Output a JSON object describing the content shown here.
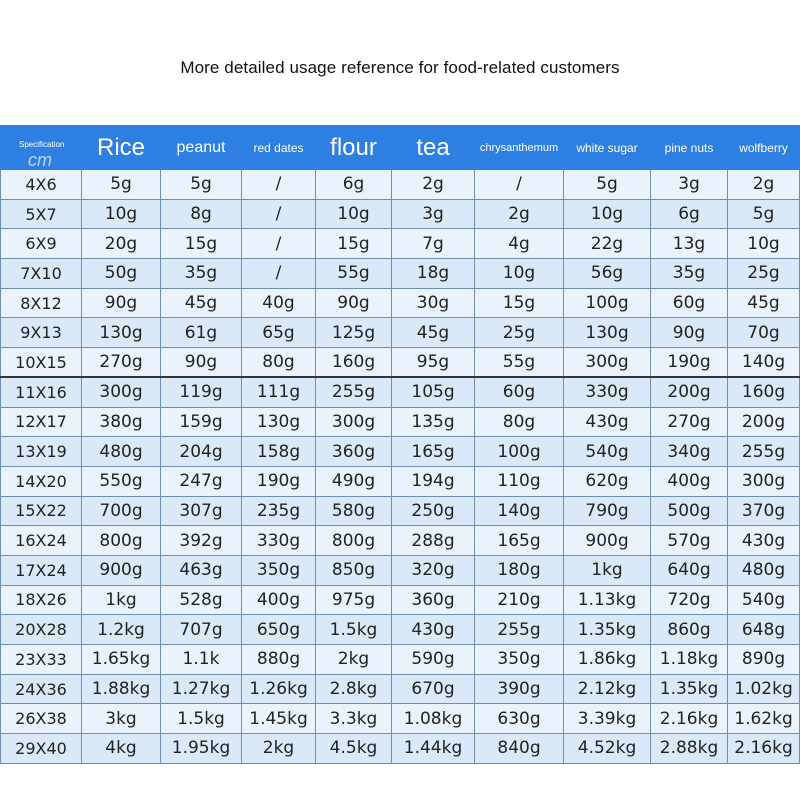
{
  "title": "More detailed usage reference for food-related customers",
  "header": {
    "spec_label": "Specification",
    "spec_unit": "cm",
    "columns": [
      "Rice",
      "peanut",
      "red dates",
      "flour",
      "tea",
      "chrysanthemum",
      "white sugar",
      "pine nuts",
      "wolfberry"
    ]
  },
  "rows": [
    [
      "4X6",
      "5g",
      "5g",
      "/",
      "6g",
      "2g",
      "/",
      "5g",
      "3g",
      "2g"
    ],
    [
      "5X7",
      "10g",
      "8g",
      "/",
      "10g",
      "3g",
      "2g",
      "10g",
      "6g",
      "5g"
    ],
    [
      "6X9",
      "20g",
      "15g",
      "/",
      "15g",
      "7g",
      "4g",
      "22g",
      "13g",
      "10g"
    ],
    [
      "7X10",
      "50g",
      "35g",
      "/",
      "55g",
      "18g",
      "10g",
      "56g",
      "35g",
      "25g"
    ],
    [
      "8X12",
      "90g",
      "45g",
      "40g",
      "90g",
      "30g",
      "15g",
      "100g",
      "60g",
      "45g"
    ],
    [
      "9X13",
      "130g",
      "61g",
      "65g",
      "125g",
      "45g",
      "25g",
      "130g",
      "90g",
      "70g"
    ],
    [
      "10X15",
      "270g",
      "90g",
      "80g",
      "160g",
      "95g",
      "55g",
      "300g",
      "190g",
      "140g"
    ],
    [
      "11X16",
      "300g",
      "119g",
      "111g",
      "255g",
      "105g",
      "60g",
      "330g",
      "200g",
      "160g"
    ],
    [
      "12X17",
      "380g",
      "159g",
      "130g",
      "300g",
      "135g",
      "80g",
      "430g",
      "270g",
      "200g"
    ],
    [
      "13X19",
      "480g",
      "204g",
      "158g",
      "360g",
      "165g",
      "100g",
      "540g",
      "340g",
      "255g"
    ],
    [
      "14X20",
      "550g",
      "247g",
      "190g",
      "490g",
      "194g",
      "110g",
      "620g",
      "400g",
      "300g"
    ],
    [
      "15X22",
      "700g",
      "307g",
      "235g",
      "580g",
      "250g",
      "140g",
      "790g",
      "500g",
      "370g"
    ],
    [
      "16X24",
      "800g",
      "392g",
      "330g",
      "800g",
      "288g",
      "165g",
      "900g",
      "570g",
      "430g"
    ],
    [
      "17X24",
      "900g",
      "463g",
      "350g",
      "850g",
      "320g",
      "180g",
      "1kg",
      "640g",
      "480g"
    ],
    [
      "18X26",
      "1kg",
      "528g",
      "400g",
      "975g",
      "360g",
      "210g",
      "1.13kg",
      "720g",
      "540g"
    ],
    [
      "20X28",
      "1.2kg",
      "707g",
      "650g",
      "1.5kg",
      "430g",
      "255g",
      "1.35kg",
      "860g",
      "648g"
    ],
    [
      "23X33",
      "1.65kg",
      "1.1k",
      "880g",
      "2kg",
      "590g",
      "350g",
      "1.86kg",
      "1.18kg",
      "890g"
    ],
    [
      "24X36",
      "1.88kg",
      "1.27kg",
      "1.26kg",
      "2.8kg",
      "670g",
      "390g",
      "2.12kg",
      "1.35kg",
      "1.02kg"
    ],
    [
      "26X38",
      "3kg",
      "1.5kg",
      "1.45kg",
      "3.3kg",
      "1.08kg",
      "630g",
      "3.39kg",
      "2.16kg",
      "1.62kg"
    ],
    [
      "29X40",
      "4kg",
      "1.95kg",
      "2kg",
      "4.5kg",
      "1.44kg",
      "840g",
      "4.52kg",
      "2.88kg",
      "2.16kg"
    ]
  ],
  "colors": {
    "header_bg": "#2d7fe2",
    "row_light": "#eaf3fc",
    "row_dark": "#d9e9f8",
    "border": "#6f8fb0"
  }
}
